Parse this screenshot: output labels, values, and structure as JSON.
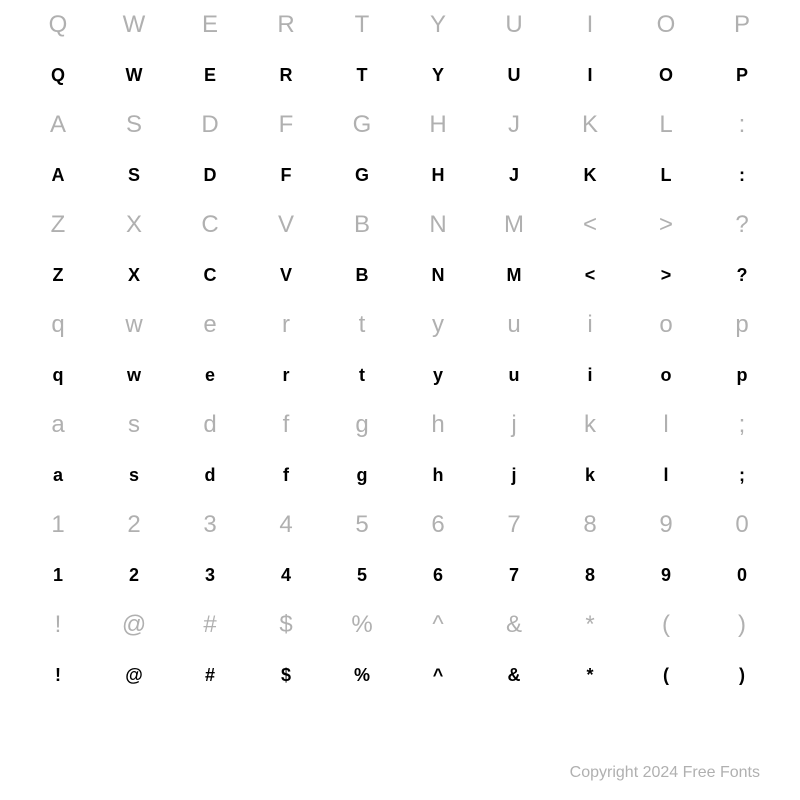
{
  "typography": {
    "ref_color": "#b0b0b0",
    "sample_color": "#000000",
    "ref_fontsize": 24,
    "sample_fontsize": 18,
    "background_color": "#ffffff"
  },
  "rows": [
    {
      "type": "ref",
      "cells": [
        "Q",
        "W",
        "E",
        "R",
        "T",
        "Y",
        "U",
        "I",
        "O",
        "P"
      ]
    },
    {
      "type": "sample",
      "cells": [
        "Q",
        "W",
        "E",
        "R",
        "T",
        "Y",
        "U",
        "I",
        "O",
        "P"
      ]
    },
    {
      "type": "ref",
      "cells": [
        "A",
        "S",
        "D",
        "F",
        "G",
        "H",
        "J",
        "K",
        "L",
        ":"
      ]
    },
    {
      "type": "sample",
      "cells": [
        "A",
        "S",
        "D",
        "F",
        "G",
        "H",
        "J",
        "K",
        "L",
        ":"
      ]
    },
    {
      "type": "ref",
      "cells": [
        "Z",
        "X",
        "C",
        "V",
        "B",
        "N",
        "M",
        "<",
        ">",
        "?"
      ]
    },
    {
      "type": "sample",
      "cells": [
        "Z",
        "X",
        "C",
        "V",
        "B",
        "N",
        "M",
        "<",
        ">",
        "?"
      ]
    },
    {
      "type": "ref",
      "cells": [
        "q",
        "w",
        "e",
        "r",
        "t",
        "y",
        "u",
        "i",
        "o",
        "p"
      ]
    },
    {
      "type": "sample",
      "cells": [
        "q",
        "w",
        "e",
        "r",
        "t",
        "y",
        "u",
        "i",
        "o",
        "p"
      ]
    },
    {
      "type": "ref",
      "cells": [
        "a",
        "s",
        "d",
        "f",
        "g",
        "h",
        "j",
        "k",
        "l",
        ";"
      ]
    },
    {
      "type": "sample",
      "cells": [
        "a",
        "s",
        "d",
        "f",
        "g",
        "h",
        "j",
        "k",
        "l",
        ";"
      ]
    },
    {
      "type": "ref",
      "cells": [
        "1",
        "2",
        "3",
        "4",
        "5",
        "6",
        "7",
        "8",
        "9",
        "0"
      ]
    },
    {
      "type": "sample",
      "cells": [
        "1",
        "2",
        "3",
        "4",
        "5",
        "6",
        "7",
        "8",
        "9",
        "0"
      ]
    },
    {
      "type": "ref",
      "cells": [
        "!",
        "@",
        "#",
        "$",
        "%",
        "^",
        "&",
        "*",
        "(",
        ")"
      ]
    },
    {
      "type": "sample",
      "cells": [
        "!",
        "@",
        "#",
        "$",
        "%",
        "^",
        "&",
        "*",
        "(",
        ")"
      ]
    }
  ],
  "footer": "Copyright 2024 Free Fonts"
}
